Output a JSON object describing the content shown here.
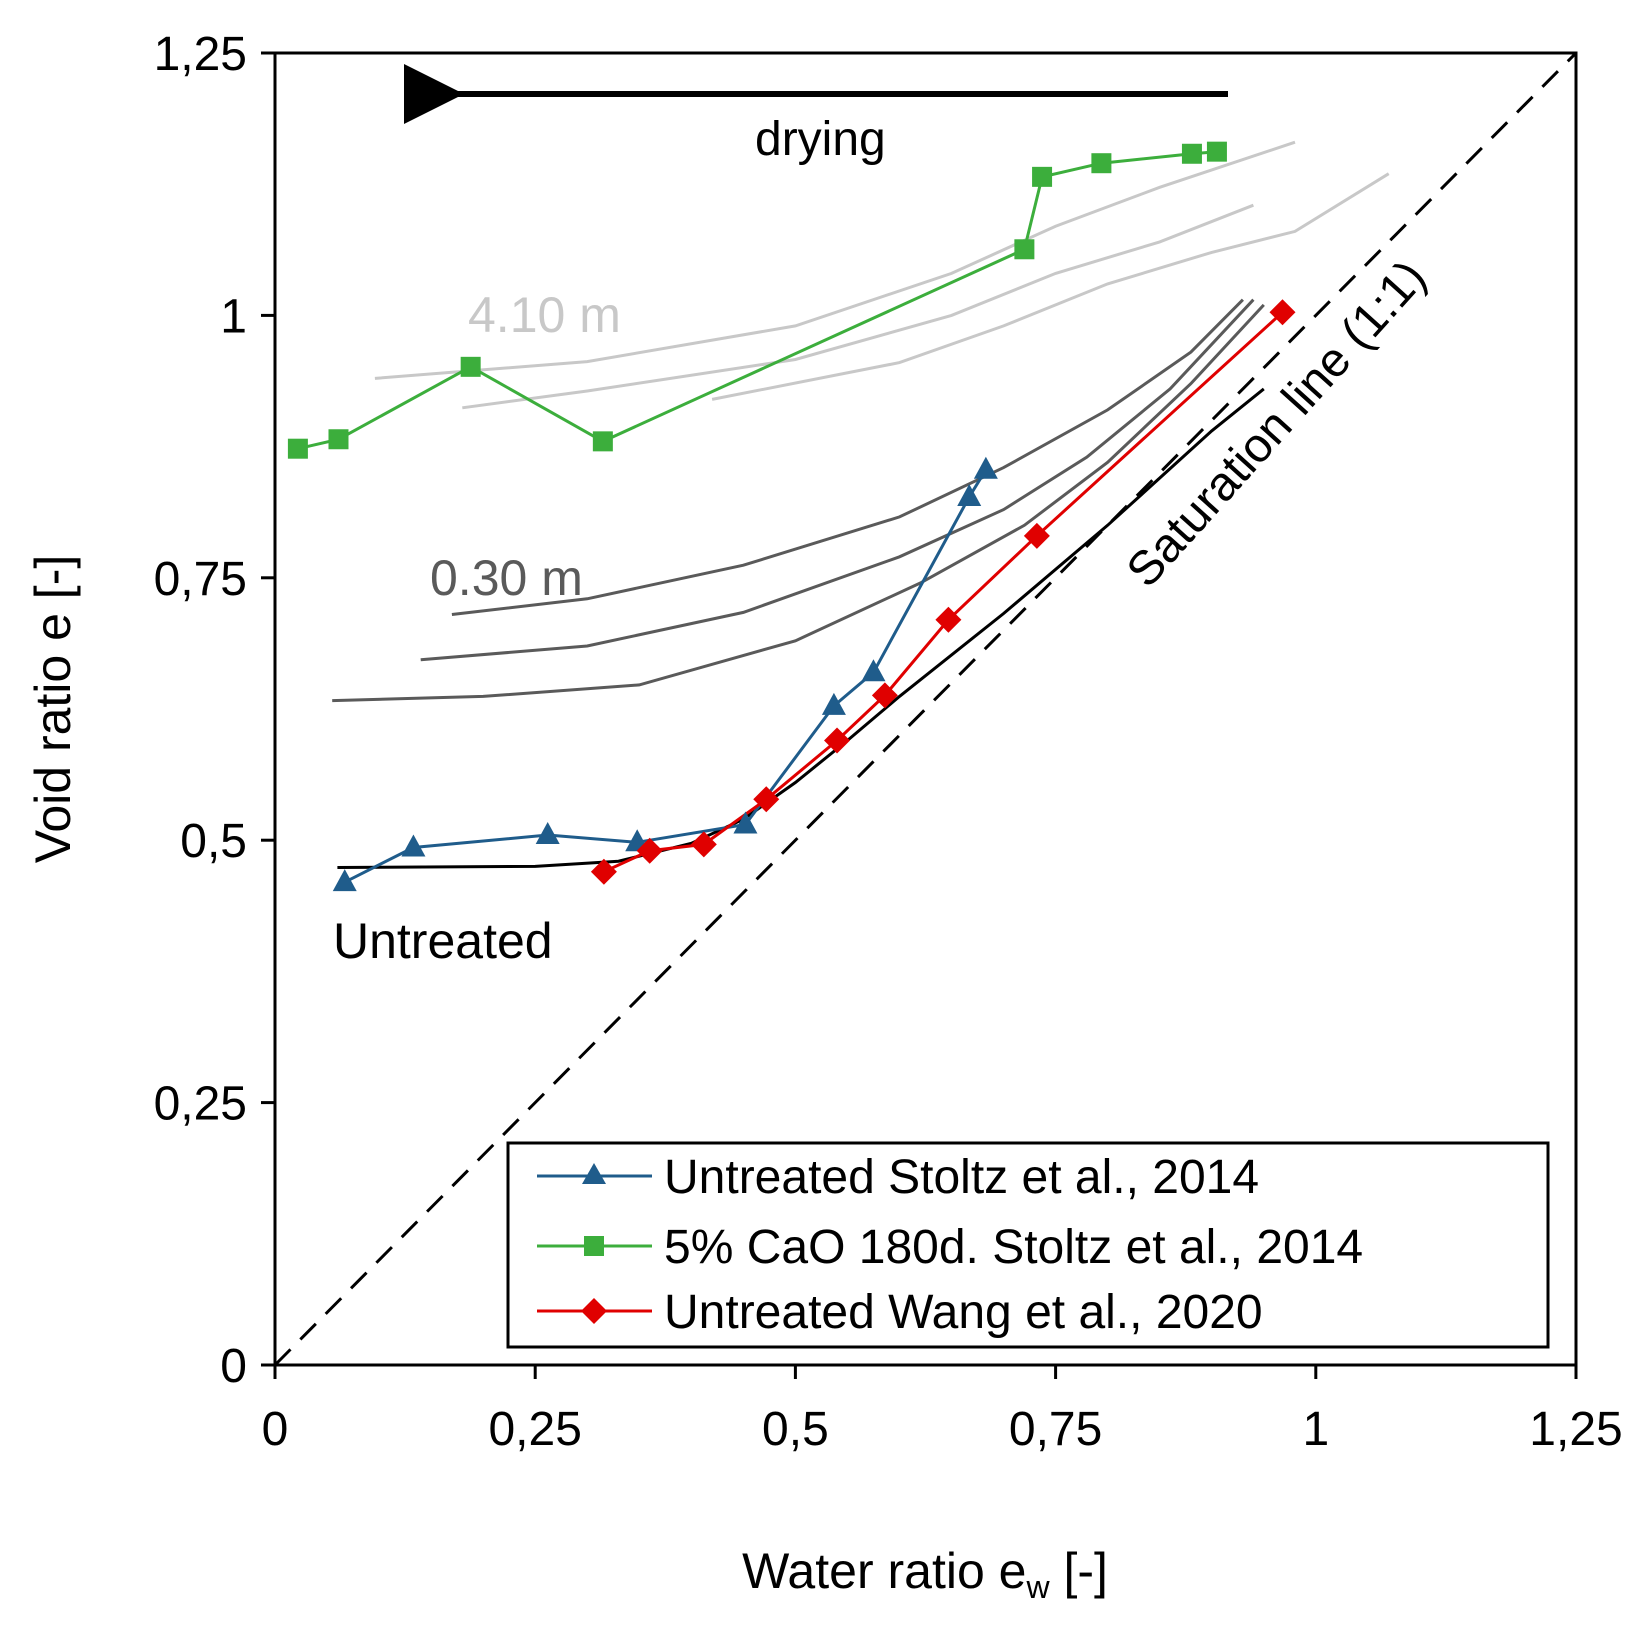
{
  "chart_data": {
    "type": "line",
    "title": "",
    "xlabel": "Water ratio e",
    "xlabel_sub": "w",
    "xlabel_suffix": " [-]",
    "ylabel": "Void ratio e [-]",
    "xlim": [
      0,
      1.25
    ],
    "ylim": [
      0,
      1.25
    ],
    "grid": false,
    "x_ticks": [
      {
        "value": 0,
        "label": "0"
      },
      {
        "value": 0.25,
        "label": "0,25"
      },
      {
        "value": 0.5,
        "label": "0,5"
      },
      {
        "value": 0.75,
        "label": "0,75"
      },
      {
        "value": 1,
        "label": "1"
      },
      {
        "value": 1.25,
        "label": "1,25"
      }
    ],
    "y_ticks": [
      {
        "value": 0,
        "label": "0"
      },
      {
        "value": 0.25,
        "label": "0,25"
      },
      {
        "value": 0.5,
        "label": "0,5"
      },
      {
        "value": 0.75,
        "label": "0,75"
      },
      {
        "value": 1,
        "label": "1"
      },
      {
        "value": 1.25,
        "label": "1,25"
      }
    ],
    "legend_position": "bottom-right",
    "series": [
      {
        "name": "Untreated Stoltz et al., 2014",
        "color": "#1f5c8b",
        "marker": "triangle",
        "x": [
          0.067,
          0.133,
          0.262,
          0.348,
          0.452,
          0.537,
          0.575,
          0.667,
          0.683
        ],
        "y": [
          0.46,
          0.493,
          0.505,
          0.498,
          0.515,
          0.628,
          0.66,
          0.827,
          0.853
        ]
      },
      {
        "name": "5% CaO 180d. Stoltz et al., 2014",
        "color": "#3cae3c",
        "marker": "square",
        "x": [
          0.022,
          0.061,
          0.188,
          0.315,
          0.72,
          0.737,
          0.794,
          0.881,
          0.905
        ],
        "y": [
          0.873,
          0.882,
          0.951,
          0.88,
          1.063,
          1.132,
          1.145,
          1.154,
          1.156
        ]
      },
      {
        "name": "Untreated Wang et al., 2020",
        "color": "#e00000",
        "marker": "diamond",
        "x": [
          0.316,
          0.36,
          0.412,
          0.472,
          0.54,
          0.586,
          0.647,
          0.732,
          0.968
        ],
        "y": [
          0.47,
          0.49,
          0.496,
          0.539,
          0.595,
          0.638,
          0.71,
          0.79,
          1.003
        ]
      }
    ],
    "reference_curves": [
      {
        "group": "4.10 m",
        "color": "#c8c8c8",
        "x": [
          0.096,
          0.3,
          0.5,
          0.65,
          0.75,
          0.85,
          0.98
        ],
        "y": [
          0.94,
          0.956,
          0.99,
          1.04,
          1.085,
          1.122,
          1.165
        ]
      },
      {
        "group": "4.10 m",
        "color": "#c8c8c8",
        "x": [
          0.18,
          0.3,
          0.5,
          0.65,
          0.75,
          0.85,
          0.94
        ],
        "y": [
          0.912,
          0.928,
          0.958,
          1.0,
          1.04,
          1.07,
          1.105
        ]
      },
      {
        "group": "4.10 m",
        "color": "#c8c8c8",
        "x": [
          0.42,
          0.6,
          0.7,
          0.8,
          0.9,
          0.98,
          1.07
        ],
        "y": [
          0.92,
          0.955,
          0.99,
          1.03,
          1.06,
          1.08,
          1.135
        ]
      },
      {
        "group": "0.30 m",
        "color": "#5a5a5a",
        "x": [
          0.17,
          0.3,
          0.45,
          0.6,
          0.7,
          0.8,
          0.88,
          0.93
        ],
        "y": [
          0.715,
          0.73,
          0.762,
          0.808,
          0.855,
          0.91,
          0.965,
          1.015
        ]
      },
      {
        "group": "0.30 m",
        "color": "#5a5a5a",
        "x": [
          0.14,
          0.3,
          0.45,
          0.6,
          0.7,
          0.78,
          0.86,
          0.94
        ],
        "y": [
          0.672,
          0.685,
          0.717,
          0.77,
          0.815,
          0.865,
          0.93,
          1.015
        ]
      },
      {
        "group": "0.30 m",
        "color": "#5a5a5a",
        "x": [
          0.055,
          0.2,
          0.35,
          0.5,
          0.62,
          0.72,
          0.8,
          0.88,
          0.95
        ],
        "y": [
          0.633,
          0.637,
          0.648,
          0.69,
          0.745,
          0.8,
          0.86,
          0.935,
          1.01
        ]
      },
      {
        "group": "Untreated",
        "color": "#000000",
        "x": [
          0.06,
          0.25,
          0.33,
          0.4,
          0.45,
          0.5,
          0.55,
          0.6,
          0.7,
          0.8,
          0.9,
          0.95
        ],
        "y": [
          0.474,
          0.475,
          0.48,
          0.497,
          0.52,
          0.555,
          0.595,
          0.637,
          0.716,
          0.8,
          0.89,
          0.93
        ]
      }
    ],
    "saturation_line": {
      "x": [
        0,
        1.25
      ],
      "y": [
        0,
        1.25
      ],
      "style": "dashed",
      "color": "#000000"
    },
    "annotations": {
      "drying_label": "drying",
      "saturation_label": "Saturation line (1:1)",
      "label_410": "4.10 m",
      "label_030": "0.30 m",
      "label_untreated": "Untreated"
    }
  }
}
